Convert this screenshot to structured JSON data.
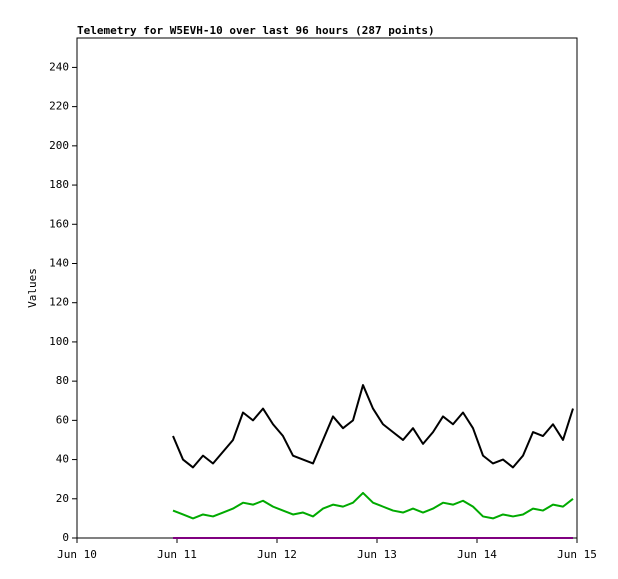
{
  "chart_data": {
    "type": "line",
    "title": "Telemetry for W5EVH-10 over last 96 hours (287 points)",
    "y_label": "Values",
    "x": [
      10.96,
      11.06,
      11.16,
      11.26,
      11.36,
      11.46,
      11.56,
      11.66,
      11.76,
      11.86,
      11.96,
      12.06,
      12.16,
      12.26,
      12.36,
      12.46,
      12.56,
      12.66,
      12.76,
      12.86,
      12.96,
      13.06,
      13.16,
      13.26,
      13.36,
      13.46,
      13.56,
      13.66,
      13.76,
      13.86,
      13.96,
      14.06,
      14.16,
      14.26,
      14.36,
      14.46,
      14.56,
      14.66,
      14.76,
      14.86,
      14.96
    ],
    "series": [
      {
        "color": "#000000",
        "values": [
          52,
          40,
          36,
          42,
          38,
          44,
          50,
          64,
          60,
          66,
          58,
          52,
          42,
          40,
          38,
          50,
          62,
          56,
          60,
          78,
          66,
          58,
          54,
          50,
          56,
          48,
          54,
          62,
          58,
          64,
          56,
          42,
          38,
          40,
          36,
          42,
          54,
          52,
          58,
          50,
          66
        ]
      },
      {
        "color": "#00aa00",
        "values": [
          14,
          12,
          10,
          12,
          11,
          13,
          15,
          18,
          17,
          19,
          16,
          14,
          12,
          13,
          11,
          15,
          17,
          16,
          18,
          23,
          18,
          16,
          14,
          13,
          15,
          13,
          15,
          18,
          17,
          19,
          16,
          11,
          10,
          12,
          11,
          12,
          15,
          14,
          17,
          16,
          20
        ]
      },
      {
        "color": "#800080",
        "values": [
          0,
          0,
          0,
          0,
          0,
          0,
          0,
          0,
          0,
          0,
          0,
          0,
          0,
          0,
          0,
          0,
          0,
          0,
          0,
          0,
          0,
          0,
          0,
          0,
          0,
          0,
          0,
          0,
          0,
          0,
          0,
          0,
          0,
          0,
          0,
          0,
          0,
          0,
          0,
          0,
          0
        ]
      }
    ],
    "xlim": [
      10,
      15
    ],
    "xticks": [
      {
        "value": 10,
        "label": "Jun 10"
      },
      {
        "value": 11,
        "label": "Jun 11"
      },
      {
        "value": 12,
        "label": "Jun 12"
      },
      {
        "value": 13,
        "label": "Jun 13"
      },
      {
        "value": 14,
        "label": "Jun 14"
      },
      {
        "value": 15,
        "label": "Jun 15"
      }
    ],
    "ylim": [
      0,
      255
    ],
    "yticks": [
      0,
      20,
      40,
      60,
      80,
      100,
      120,
      140,
      160,
      180,
      200,
      220,
      240
    ],
    "grid": false
  }
}
